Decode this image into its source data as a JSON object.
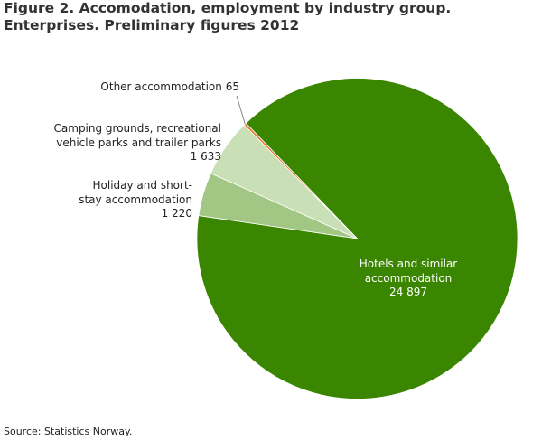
{
  "chart_data": {
    "type": "pie",
    "title": "Figure 2. Accomodation, employment by industry group. Enterprises. Preliminary figures 2012",
    "categories": [
      "Hotels and similar\naccommodation",
      "Holiday and short-\nstay accommodation",
      "Camping grounds, recreational\nvehicle parks and trailer parks",
      "Other accommodation"
    ],
    "values": [
      24897,
      1220,
      1633,
      65
    ],
    "value_labels": [
      "24 897",
      "1 220",
      "1 633",
      "65"
    ],
    "colors": [
      "#3a8600",
      "#a2c785",
      "#c9dfb5",
      "#e07028"
    ],
    "source": "Source: Statistics Norway."
  }
}
